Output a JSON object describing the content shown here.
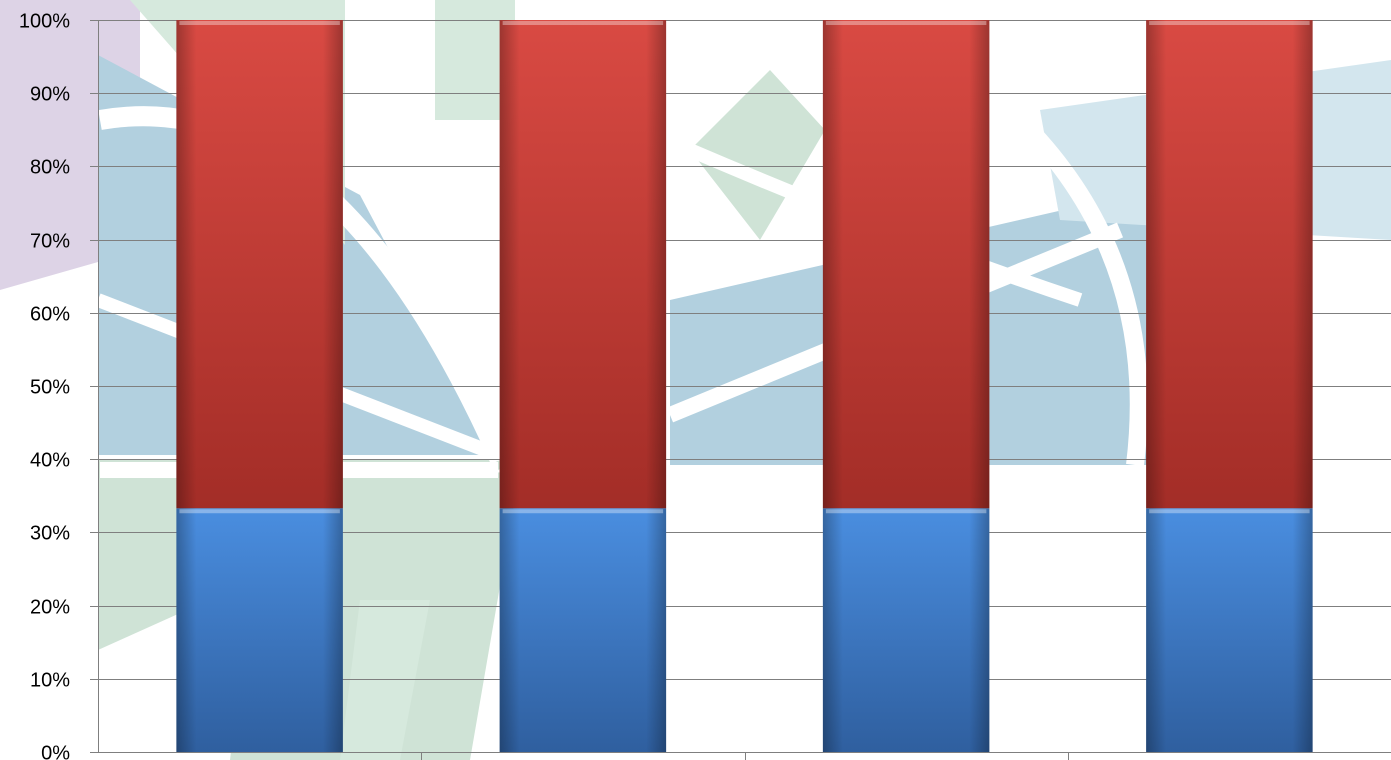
{
  "chart_data": {
    "type": "bar",
    "stacked": "percent",
    "categories": [
      "",
      "",
      "",
      ""
    ],
    "series": [
      {
        "name": "",
        "color": "#3a78c9",
        "values": [
          33.3,
          33.3,
          33.3,
          33.3
        ]
      },
      {
        "name": "",
        "color": "#c43a33",
        "values": [
          66.7,
          66.7,
          66.7,
          66.7
        ]
      }
    ],
    "title": "",
    "xlabel": "",
    "ylabel": "",
    "ylim": [
      0,
      100
    ],
    "yticks": [
      "0%",
      "10%",
      "20%",
      "30%",
      "40%",
      "50%",
      "60%",
      "70%",
      "80%",
      "90%",
      "100%"
    ],
    "grid": true,
    "legend": "none",
    "background": "decorative watermark pattern"
  }
}
